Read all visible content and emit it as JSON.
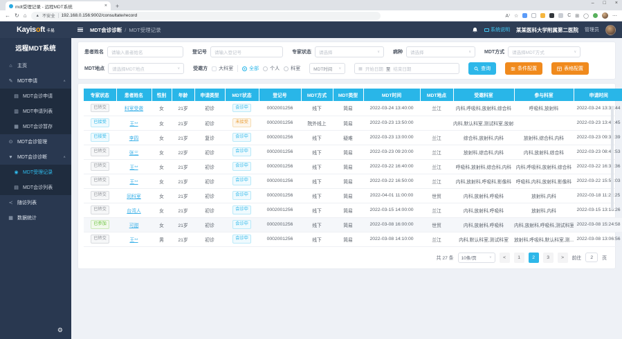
{
  "browser": {
    "tab_title": "mdt受理记录 - 远程MDT系统",
    "security_label": "不安全",
    "url": "192.168.0.156:9002/consultate/record"
  },
  "header": {
    "logo_part1": "Kayis",
    "logo_part2": "o",
    "logo_part3": "ft",
    "logo_cn": "卡易",
    "breadcrumb_parent": "MDT会诊诊断",
    "breadcrumb_sep": "/",
    "breadcrumb_current": "MDT受理记录",
    "system_help_label": "系统说明",
    "hospital_name": "某某医科大学附属第二医院",
    "user_role": "管理员"
  },
  "sidebar": {
    "title": "远程MDT系统",
    "items": [
      {
        "label": "主页"
      },
      {
        "label": "MDT申请"
      },
      {
        "label": "MDT会诊申请"
      },
      {
        "label": "MDT申请列表"
      },
      {
        "label": "MDT会诊暂存"
      },
      {
        "label": "MDT会诊管理"
      },
      {
        "label": "MDT会诊诊断"
      },
      {
        "label": "MDT受理记录"
      },
      {
        "label": "MDT会诊列表"
      },
      {
        "label": "随访列表"
      },
      {
        "label": "数据统计"
      }
    ]
  },
  "icons": {
    "home": "⌂",
    "edit": "✎",
    "list1": "▤",
    "list2": "▥",
    "list3": "▦",
    "clock": "⊙",
    "heart": "♥",
    "record": "◉",
    "list4": "▤",
    "share": "≺",
    "stats": "▦",
    "caret_up": "∧",
    "caret_down": "∨",
    "gear": "⚙",
    "back": "←",
    "reload": "↻",
    "home_nav": "⌂",
    "star": "☆",
    "font_size": "A⁾",
    "warning": "▲",
    "close": "×",
    "plus": "+",
    "minimize": "–",
    "maximize": "□",
    "more": "⋯",
    "calendar": "▦",
    "split": "⊞",
    "sync": "C",
    "circle": "◯"
  },
  "search": {
    "patient_name_label": "患者姓名",
    "patient_name_placeholder": "请输入患者姓名",
    "reg_no_label": "登记号",
    "reg_no_placeholder": "请输入登记号",
    "expert_status_label": "专家状态",
    "expert_status_placeholder": "请选择",
    "disease_label": "病种",
    "disease_placeholder": "请选择",
    "mdt_mode_label": "MDT方式",
    "mdt_mode_placeholder": "请选择MDT方式",
    "mdt_place_label": "MDT地点",
    "mdt_place_placeholder": "请选择MDT地点",
    "invitee_label": "受邀方",
    "dept_checkbox_label": "大科室",
    "radio_all": "全部",
    "radio_personal": "个人",
    "radio_dept": "科室",
    "time_select_value": "MDT时间",
    "date_start_placeholder": "开始日期",
    "date_separator": "至",
    "date_end_placeholder": "结束日期",
    "search_button": "查询",
    "condition_button": "条件配置",
    "table_config_button": "表格配置"
  },
  "table": {
    "columns": [
      "专家状态",
      "患者姓名",
      "性别",
      "年龄",
      "申请类型",
      "MDT状态",
      "登记号",
      "MDT方式",
      "MDT类型",
      "MDT时间",
      "MDT地点",
      "受邀科室",
      "参与科室",
      "申请时间"
    ],
    "rows": [
      {
        "es": "已转交",
        "est": "info",
        "name": "科室受邀",
        "sex": "女",
        "age": "21岁",
        "at": "初诊",
        "ms": "会诊中",
        "mst": "primary",
        "reg": "0002001256",
        "mode": "线下",
        "type": "简易",
        "time": "2022-03-24 13:40:00",
        "place": "兰江",
        "invited": "内科,呼吸科,放射科,综合科",
        "joined": "呼吸科,放射科",
        "applied": "2022-03-24 13:37:44"
      },
      {
        "es": "已接受",
        "est": "primary",
        "name": "王**",
        "sex": "女",
        "age": "21岁",
        "at": "初诊",
        "ms": "未接受",
        "mst": "warning",
        "reg": "0002001256",
        "mode": "院外线上",
        "type": "简易",
        "time": "2022-03-23 13:50:00",
        "place": "",
        "invited": "内科,默认科室,测试科室,放射科",
        "joined": "",
        "applied": "2022-03-23 13:41:45"
      },
      {
        "es": "已接受",
        "est": "primary",
        "name": "李四",
        "sex": "女",
        "age": "21岁",
        "at": "复诊",
        "ms": "会诊中",
        "mst": "primary",
        "reg": "0002001256",
        "mode": "线下",
        "type": "疑难",
        "time": "2022-03-23 13:00:00",
        "place": "兰江",
        "invited": "综合科,放射科,内科",
        "joined": "放射科,综合科,内科",
        "applied": "2022-03-23 09:35:39"
      },
      {
        "es": "已转交",
        "est": "info",
        "name": "张三",
        "sex": "女",
        "age": "22岁",
        "at": "初诊",
        "ms": "会诊中",
        "mst": "primary",
        "reg": "0002001256",
        "mode": "线下",
        "type": "简易",
        "time": "2022-03-23 09:20:00",
        "place": "兰江",
        "invited": "放射科,综合科,内科",
        "joined": "内科,放射科,综合科",
        "applied": "2022-03-23 08:49:53"
      },
      {
        "es": "已转交",
        "est": "info",
        "name": "王**",
        "sex": "女",
        "age": "21岁",
        "at": "初诊",
        "ms": "会诊中",
        "mst": "primary",
        "reg": "0002001256",
        "mode": "线下",
        "type": "简易",
        "time": "2022-03-22 16:40:00",
        "place": "兰江",
        "invited": "呼吸科,放射科,综合科,内科",
        "joined": "内科,呼吸科,放射科,综合科",
        "applied": "2022-03-22 16:31:36"
      },
      {
        "es": "已转交",
        "est": "info",
        "name": "王**",
        "sex": "女",
        "age": "21岁",
        "at": "初诊",
        "ms": "会诊中",
        "mst": "primary",
        "reg": "0002001256",
        "mode": "线下",
        "type": "简易",
        "time": "2022-03-22 16:50:00",
        "place": "兰江",
        "invited": "内科,放射科,呼吸科,影像科",
        "joined": "呼吸科,内科,放射科,影像科",
        "applied": "2022-03-22 15:57:03"
      },
      {
        "es": "已转交",
        "est": "info",
        "name": "同科室",
        "sex": "女",
        "age": "21岁",
        "at": "初诊",
        "ms": "会诊中",
        "mst": "primary",
        "reg": "0002001256",
        "mode": "线下",
        "type": "简易",
        "time": "2022-04-01 11:00:00",
        "place": "世贸",
        "invited": "内科,放射科,呼吸科",
        "joined": "放射科,内科",
        "applied": "2022-03-18 11:28:25"
      },
      {
        "es": "已转交",
        "est": "info",
        "name": "台湾人",
        "sex": "女",
        "age": "21岁",
        "at": "初诊",
        "ms": "会诊中",
        "mst": "primary",
        "reg": "0002001256",
        "mode": "线下",
        "type": "简易",
        "time": "2022-03-15 14:00:00",
        "place": "兰江",
        "invited": "内科,放射科,呼吸科",
        "joined": "放射科,内科",
        "applied": "2022-03-15 13:16:26"
      },
      {
        "es": "已参加",
        "est": "success",
        "name": "可甜",
        "sex": "女",
        "age": "21岁",
        "at": "初诊",
        "ms": "会诊中",
        "mst": "primary",
        "reg": "0002001256",
        "mode": "线下",
        "type": "简易",
        "time": "2022-03-08 16:00:00",
        "place": "世贸",
        "invited": "内科,放射科,呼吸科",
        "joined": "内科,放射科,呼吸科,测试科室",
        "applied": "2022-03-08 15:24:58",
        "hover": true
      },
      {
        "es": "已转交",
        "est": "info",
        "name": "王**",
        "sex": "男",
        "age": "21岁",
        "at": "初诊",
        "ms": "会诊中",
        "mst": "primary",
        "reg": "0002001256",
        "mode": "线下",
        "type": "简易",
        "time": "2022-03-08 14:10:00",
        "place": "兰江",
        "invited": "内科,默认科室,测试科室",
        "joined": "放射科,呼吸科,默认科室,测...",
        "applied": "2022-03-08 13:06:56"
      }
    ]
  },
  "pagination": {
    "total_text": "共 27 条",
    "page_size": "10条/页",
    "pages": [
      "1",
      "2",
      "3"
    ],
    "active_page": "2",
    "goto_label": "前往",
    "goto_value": "2",
    "goto_suffix": "页"
  }
}
